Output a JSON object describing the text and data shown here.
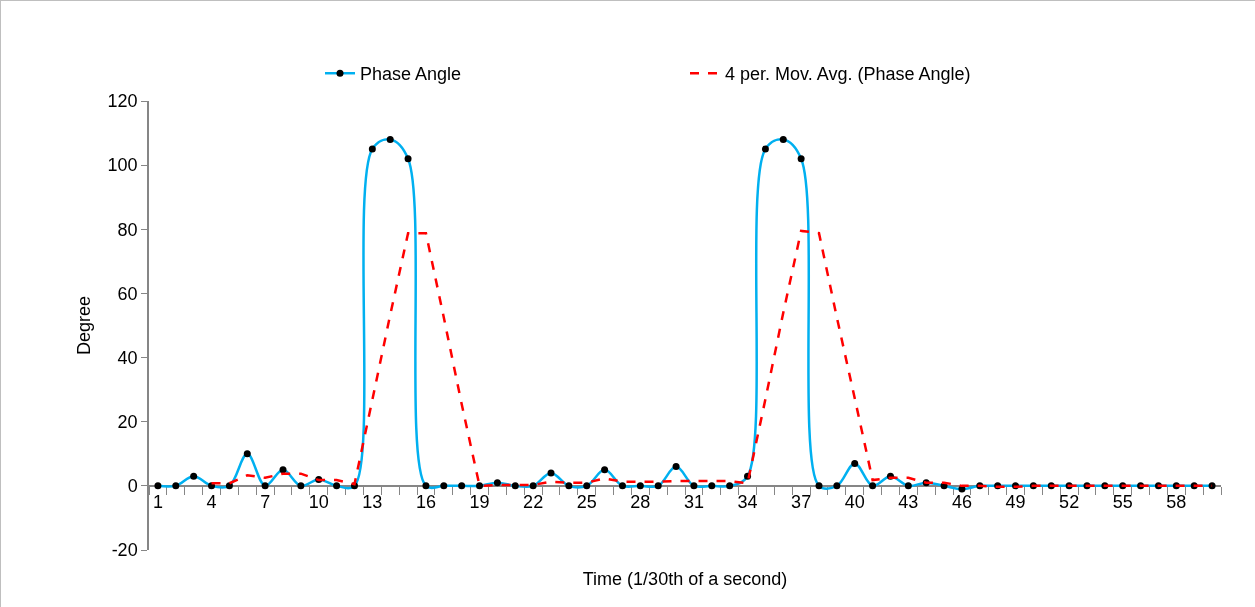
{
  "chart_data": {
    "type": "line",
    "xlabel": "Time (1/30th of a second)",
    "ylabel": "Degree",
    "categories": [
      "1",
      null,
      null,
      "4",
      null,
      null,
      "7",
      null,
      null,
      "10",
      null,
      null,
      "13",
      null,
      null,
      "16",
      null,
      null,
      "19",
      null,
      null,
      "22",
      null,
      null,
      "25",
      null,
      null,
      "28",
      null,
      null,
      "31",
      null,
      null,
      "34",
      null,
      null,
      "37",
      null,
      null,
      "40",
      null,
      null,
      "43",
      null,
      null,
      "46",
      null,
      null,
      "49",
      null,
      null,
      "52",
      null,
      null,
      "55",
      null,
      null,
      "58",
      null,
      null
    ],
    "series": [
      {
        "name": "Phase Angle",
        "color": "#00b0f0",
        "marker": "circle",
        "line_style": "solid",
        "values": [
          0,
          0,
          3,
          0,
          0,
          10,
          0,
          5,
          0,
          2,
          0,
          0,
          105,
          108,
          102,
          0,
          0,
          0,
          0,
          1,
          0,
          0,
          4,
          0,
          0,
          5,
          0,
          0,
          0,
          6,
          0,
          0,
          0,
          3,
          105,
          108,
          102,
          0,
          0,
          7,
          0,
          3,
          0,
          1,
          0,
          -1,
          0,
          0,
          0,
          0,
          0,
          0,
          0,
          0,
          0,
          0,
          0,
          0,
          0,
          0
        ]
      },
      {
        "name": "4 per. Mov. Avg. (Phase Angle)",
        "color": "#ff0000",
        "marker": "none",
        "line_style": "dashed",
        "values": [
          null,
          null,
          null,
          0.8,
          0.8,
          3.3,
          2.5,
          3.8,
          3.8,
          1.8,
          1.8,
          0.5,
          26.8,
          53.3,
          78.8,
          78.8,
          52.5,
          25.5,
          0,
          0.3,
          0.3,
          0.3,
          1.3,
          1,
          1,
          2.3,
          1.3,
          1.3,
          1.3,
          1.5,
          1.5,
          1.5,
          1.5,
          0.8,
          27,
          54,
          79.5,
          78.8,
          52.5,
          27.3,
          1.8,
          2.5,
          2.5,
          1,
          1,
          0,
          0,
          -0.3,
          -0.3,
          0,
          0,
          0,
          0,
          0,
          0,
          0,
          0,
          0,
          0,
          0
        ]
      }
    ],
    "ylim": [
      -20,
      120
    ],
    "yticks": [
      -20,
      0,
      20,
      40,
      60,
      80,
      100,
      120
    ],
    "grid": false,
    "legend": "top"
  }
}
